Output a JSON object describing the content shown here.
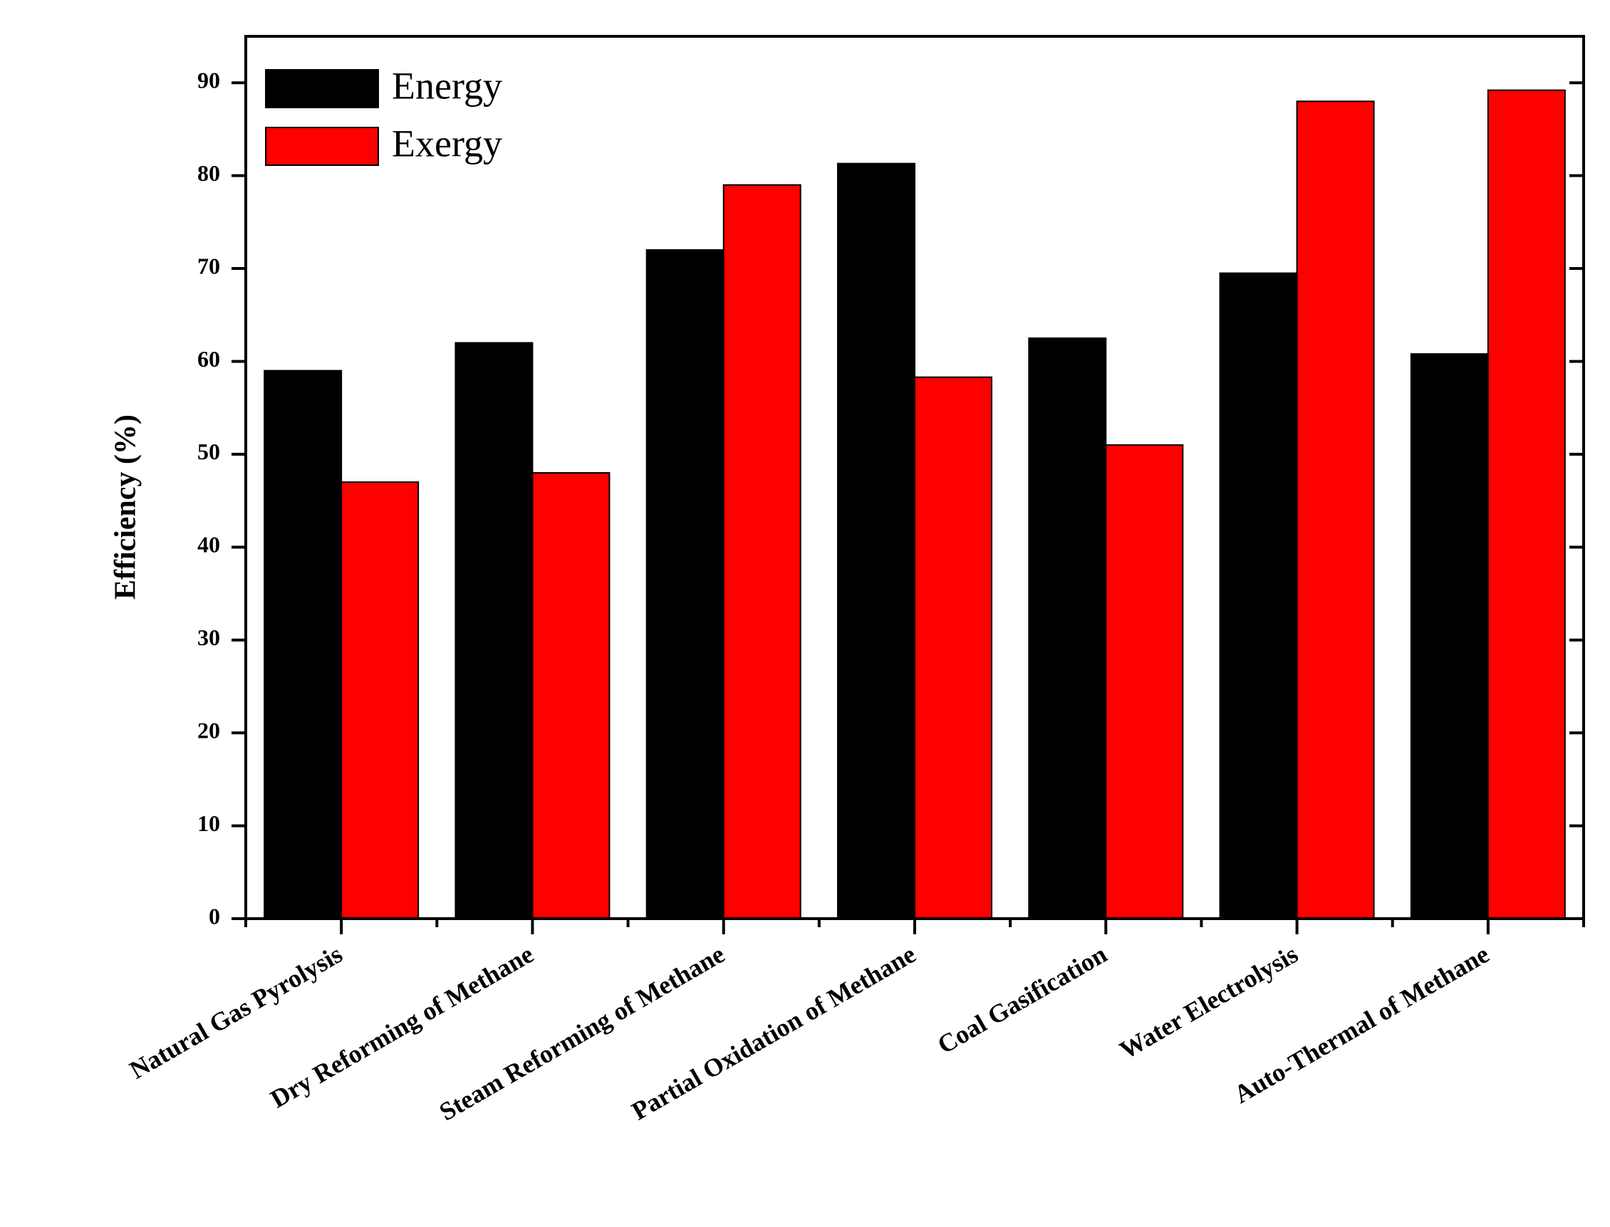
{
  "chart_data": {
    "type": "bar",
    "y_label": "Efficiency (%)",
    "categories": [
      "Natural Gas Pyrolysis",
      "Dry Reforming of Methane",
      "Steam Reforming of Methane",
      "Partial Oxidation of Methane",
      "Coal Gasification",
      "Water Electrolysis",
      "Auto-Thermal of Methane"
    ],
    "series": [
      {
        "name": "Energy",
        "color": "#000000",
        "values": [
          59,
          62,
          72,
          81.3,
          62.5,
          69.5,
          60.8
        ]
      },
      {
        "name": "Exergy",
        "color": "#ff0000",
        "values": [
          47,
          48,
          79,
          58.3,
          51,
          88,
          89.2
        ]
      }
    ],
    "ylim": [
      0,
      95
    ],
    "yticks": [
      0,
      10,
      20,
      30,
      40,
      50,
      60,
      70,
      80,
      90
    ],
    "legend": "upper left",
    "grid": false
  }
}
